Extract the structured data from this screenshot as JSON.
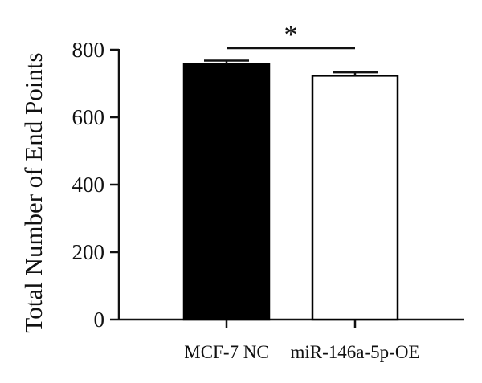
{
  "chart_data": {
    "type": "bar",
    "title": "",
    "xlabel": "",
    "ylabel": "Total Number of End Points",
    "ylim": [
      0,
      800
    ],
    "yticks": [
      0,
      200,
      400,
      600,
      800
    ],
    "yticks_labels": [
      "0",
      "200",
      "400",
      "600",
      "800"
    ],
    "categories": [
      "MCF-7 NC",
      "miR-146a-5p-OE"
    ],
    "values": [
      758,
      723
    ],
    "errors": [
      10,
      10
    ],
    "bar_fill": [
      "#000000",
      "#ffffff"
    ],
    "bar_stroke": "#000000",
    "significance": {
      "pair": [
        0,
        1
      ],
      "label": "*"
    },
    "grid": false,
    "legend": "none"
  }
}
